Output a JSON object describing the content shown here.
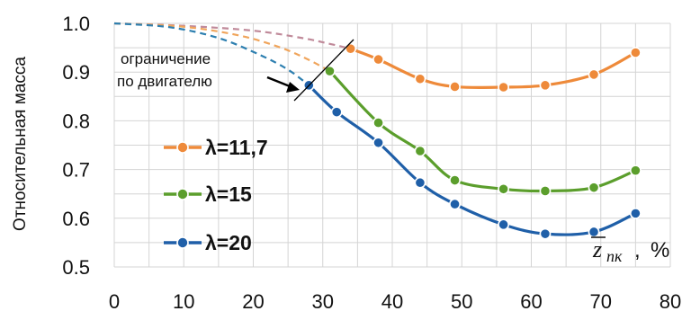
{
  "chart_data": {
    "type": "line",
    "ylabel": "Относительная масса",
    "xlabel": {
      "main": "z",
      "sub": "пк",
      "unit": "%"
    },
    "xlim": [
      0,
      80
    ],
    "ylim": [
      0.5,
      1.0
    ],
    "xticks": [
      "0",
      "10",
      "20",
      "30",
      "40",
      "50",
      "60",
      "70",
      "80"
    ],
    "yticks": [
      "0.5",
      "0.6",
      "0.7",
      "0.8",
      "0.9",
      "1.0"
    ],
    "grid": true,
    "legend_position": "left",
    "annotation": {
      "line1": "ограничение",
      "line2": "по двигателю"
    },
    "series": [
      {
        "name": "λ=11,7",
        "color": "#ee8a3a",
        "x": [
          34,
          38,
          44,
          49,
          56,
          62,
          69,
          75
        ],
        "y": [
          0.948,
          0.926,
          0.886,
          0.87,
          0.869,
          0.873,
          0.895,
          0.94
        ],
        "dashed_x": [
          0,
          10,
          20,
          27,
          31,
          34
        ],
        "dashed_y": [
          1.0,
          0.995,
          0.985,
          0.97,
          0.958,
          0.948
        ],
        "dash_color": "#c08a9a"
      },
      {
        "name": "λ=15",
        "color": "#5b9e2c",
        "x": [
          31,
          38,
          44,
          49,
          56,
          62,
          69,
          75
        ],
        "y": [
          0.902,
          0.796,
          0.738,
          0.678,
          0.66,
          0.656,
          0.663,
          0.698
        ],
        "dashed_x": [
          0,
          10,
          18,
          24,
          28,
          31
        ],
        "dashed_y": [
          1.0,
          0.993,
          0.975,
          0.95,
          0.925,
          0.902
        ],
        "dash_color": "#f0a55c"
      },
      {
        "name": "λ=20",
        "color": "#1f5fa8",
        "x": [
          28,
          32,
          38,
          44,
          49,
          56,
          62,
          69,
          75
        ],
        "y": [
          0.873,
          0.818,
          0.755,
          0.673,
          0.629,
          0.587,
          0.568,
          0.572,
          0.61
        ],
        "dashed_x": [
          0,
          8,
          15,
          21,
          25,
          28
        ],
        "dashed_y": [
          1.0,
          0.992,
          0.97,
          0.935,
          0.905,
          0.873
        ],
        "dash_color": "#2d7fb0"
      }
    ]
  }
}
